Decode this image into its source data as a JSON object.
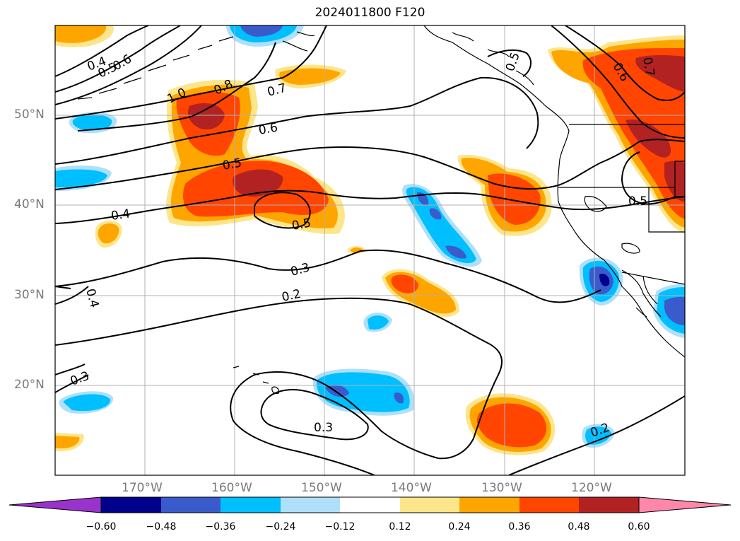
{
  "title": "2024011800 F120",
  "lat_labels": [
    "50°N",
    "40°N",
    "30°N",
    "20°N"
  ],
  "lon_labels": [
    "170°W",
    "160°W",
    "150°W",
    "140°W",
    "130°W",
    "120°W"
  ],
  "contour_labels": {
    "c04a": "0.4",
    "c05a": "0.5",
    "c06a": "0.6",
    "c10": "1.0",
    "c08": "0.8",
    "c07": "0.7",
    "c06b": "0.6",
    "c05b": "0.5",
    "c04b": "0.4",
    "c05c": "0.5",
    "c03a": "0.3",
    "c04c": "0.4",
    "c02a": "0.2",
    "c03b": "0.3",
    "c03c": "0.3",
    "c05d": "0.5",
    "c06c": "0.6",
    "c07b": "0.7",
    "c05e": "0.5",
    "c02b": "0.2"
  },
  "colorbar": {
    "labels": [
      "−0.60",
      "−0.48",
      "−0.36",
      "−0.24",
      "−0.12",
      "0.12",
      "0.24",
      "0.36",
      "0.48",
      "0.60"
    ],
    "colors": [
      "#9933cc",
      "#00008b",
      "#3a5bcc",
      "#00bfff",
      "#aee0fa",
      "#ffffff",
      "#fde58a",
      "#ffa500",
      "#ff4500",
      "#b22222",
      "#ff88aa"
    ]
  },
  "colors": {
    "pos1": "#fde58a",
    "pos2": "#ffa500",
    "pos3": "#ff4500",
    "pos4": "#b22222",
    "neg1": "#aee0fa",
    "neg2": "#00bfff",
    "neg3": "#3a5bcc",
    "neg4": "#00008b"
  }
}
